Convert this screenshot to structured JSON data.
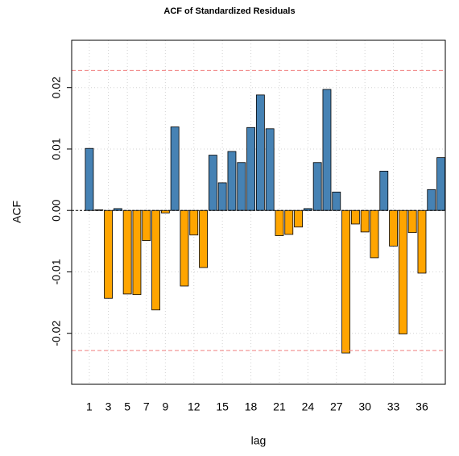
{
  "chart_data": {
    "type": "bar",
    "title": "ACF of Standardized Residuals",
    "xlabel": "lag",
    "ylabel": "ACF",
    "x": [
      1,
      2,
      3,
      4,
      5,
      6,
      7,
      8,
      9,
      10,
      11,
      12,
      13,
      14,
      15,
      16,
      17,
      18,
      19,
      20,
      21,
      22,
      23,
      24,
      25,
      26,
      27,
      28,
      29,
      30,
      31,
      32,
      33,
      34,
      35,
      36,
      37,
      38
    ],
    "values": [
      0.0101,
      0.0001,
      -0.0143,
      0.0003,
      -0.0136,
      -0.0137,
      -0.0049,
      -0.0162,
      -0.0004,
      0.0136,
      -0.0123,
      -0.004,
      -0.0093,
      0.009,
      0.0045,
      0.0096,
      0.0078,
      0.0135,
      0.0188,
      0.0133,
      -0.0041,
      -0.0039,
      -0.0027,
      0.0003,
      0.0078,
      0.0197,
      0.003,
      -0.0232,
      -0.0022,
      -0.0035,
      -0.0077,
      0.0064,
      -0.0058,
      -0.0201,
      -0.0036,
      -0.0102,
      0.0034,
      0.0086
    ],
    "pos_color": "#4682b4",
    "neg_color": "#ffa500",
    "ci_lines": [
      0.0228,
      -0.0228
    ],
    "ci_color": "#f08080",
    "xlim": [
      -0.86,
      38.46
    ],
    "ylim": [
      -0.0283,
      0.0277
    ],
    "xticks": [
      1,
      3,
      5,
      7,
      9,
      12,
      15,
      18,
      21,
      24,
      27,
      30,
      33,
      36
    ],
    "yticks": [
      -0.02,
      -0.01,
      {
        "value": 0,
        "label": "0.00"
      },
      0.01,
      0.02
    ],
    "grid": true
  }
}
